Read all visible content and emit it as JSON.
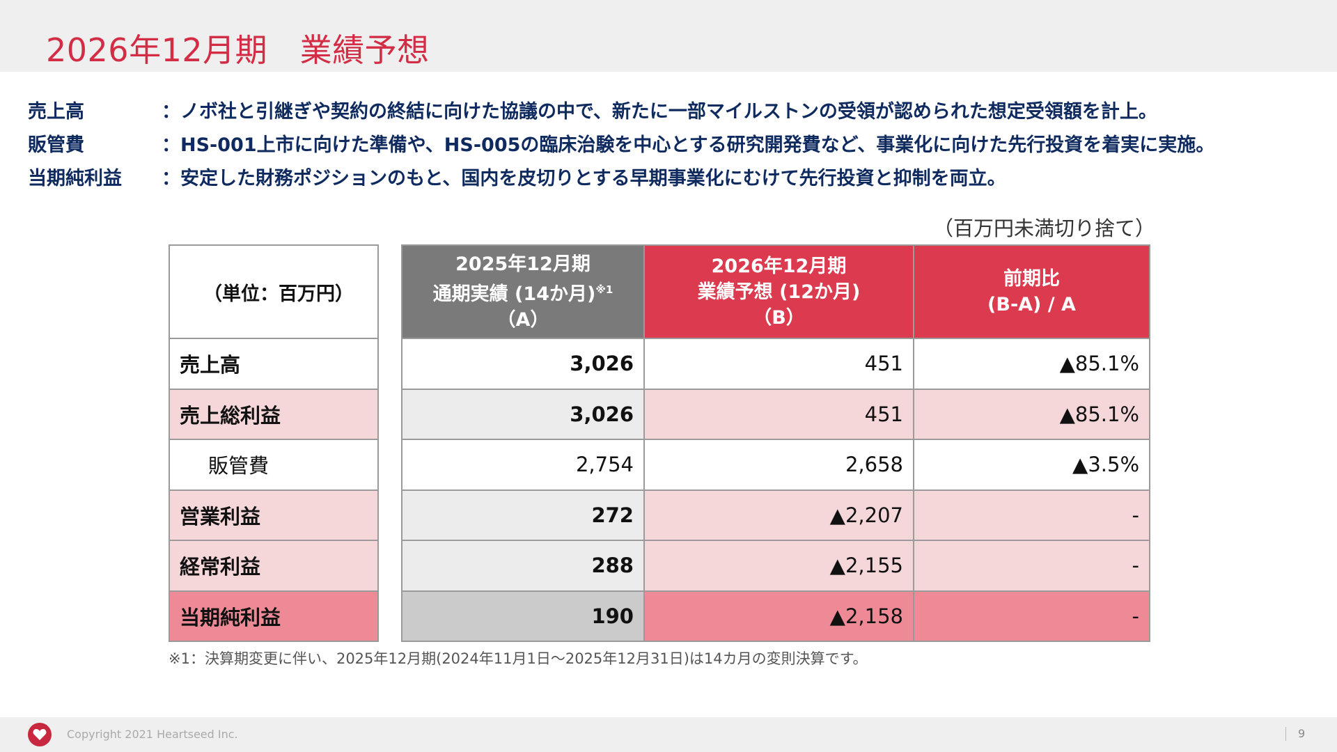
{
  "title": "2026年12月期　業績予想",
  "notes": [
    {
      "label": "売上高",
      "text": "：ノボ社と引継ぎや契約の終結に向けた協議の中で、新たに一部マイルストンの受領が認められた想定受領額を計上。"
    },
    {
      "label": "販管費",
      "text": "：HS-001上市に向けた準備や、HS-005の臨床治験を中心とする研究開発費など、事業化に向けた先行投資を着実に実施。"
    },
    {
      "label": "当期純利益",
      "text": "：安定した財務ポジションのもと、国内を皮切りとする早期事業化にむけて先行投資と抑制を両立。"
    }
  ],
  "unit_note": "（百万円未満切り捨て）",
  "table": {
    "unit_header": "（単位：百万円）",
    "col_a": {
      "line1": "2025年12月期",
      "line2": "通期実績 (14か月)",
      "mark": "※1",
      "line3": "（A）"
    },
    "col_b": {
      "line1": "2026年12月期",
      "line2": "業績予想 (12か月)",
      "line3": "（B）"
    },
    "col_c": {
      "line1": "前期比",
      "line2": "(B-A) / A"
    },
    "rows": [
      {
        "label": "売上高",
        "a": "3,026",
        "b": "451",
        "c": "▲85.1%"
      },
      {
        "label": "売上総利益",
        "a": "3,026",
        "b": "451",
        "c": "▲85.1%"
      },
      {
        "label": "販管費",
        "a": "2,754",
        "b": "2,658",
        "c": "▲3.5%"
      },
      {
        "label": "営業利益",
        "a": "272",
        "b": "▲2,207",
        "c": "-"
      },
      {
        "label": "経常利益",
        "a": "288",
        "b": "▲2,155",
        "c": "-"
      },
      {
        "label": "当期純利益",
        "a": "190",
        "b": "▲2,158",
        "c": "-"
      }
    ]
  },
  "footnote": "※1：決算期変更に伴い、2025年12月期(2024年11月1日～2025年12月31日)は14カ月の変則決算です。",
  "footer": {
    "copyright": "Copyright 2021 Heartseed Inc.",
    "page": "9",
    "logo_icon": "heart-logo-icon"
  },
  "colors": {
    "accent": "#d22d45",
    "header_red": "#dc3a4f",
    "header_gray": "#7a7a7a",
    "row_pink": "#f5d7da",
    "row_dark_pink": "#ee8a96",
    "note_text": "#0f2a5f"
  }
}
